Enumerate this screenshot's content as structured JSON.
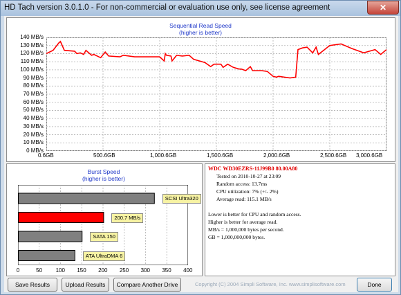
{
  "window": {
    "title": "HD Tach version 3.0.1.0  - For non-commercial or evaluation use only, see license agreement",
    "close_glyph": "✕"
  },
  "seq_chart": {
    "title": "Sequential Read Speed",
    "subtitle": "(higher is better)",
    "y_ticks": [
      "140 MB/s",
      "130 MB/s",
      "120 MB/s",
      "110 MB/s",
      "100 MB/s",
      "90 MB/s",
      "80 MB/s",
      "70 MB/s",
      "60 MB/s",
      "50 MB/s",
      "40 MB/s",
      "30 MB/s",
      "20 MB/s",
      "10 MB/s",
      "0 MB/s"
    ],
    "x_ticks": [
      "0.6GB",
      "500.6GB",
      "1,000.6GB",
      "1,500.6GB",
      "2,000.6GB",
      "2,500.6GB",
      "3,000.6GB"
    ]
  },
  "burst_chart": {
    "title": "Burst Speed",
    "subtitle": "(higher is better)",
    "x_ticks": [
      "0",
      "50",
      "100",
      "150",
      "200",
      "250",
      "300",
      "350",
      "400"
    ],
    "bar_labels": [
      "SCSI Ultra320",
      "200.7 MB/s",
      "SATA 150",
      "ATA UltraDMA 6"
    ]
  },
  "info": {
    "drive": "WDC  WD30EZRS-11J99B0 80.00A80",
    "lines": [
      "Tested on 2010-10-27 at 23:09",
      "Random access: 13.7ms",
      "CPU utilization: 7% (+/- 2%)",
      "Average read: 115.1 MB/s"
    ],
    "notes": [
      "Lower is better for CPU and random access.",
      "Higher is better for average read.",
      "MB/s = 1,000,000 bytes per second.",
      "GB = 1,000,000,000 bytes."
    ]
  },
  "buttons": {
    "save": "Save Results",
    "upload": "Upload Results",
    "compare": "Compare Another Drive",
    "done": "Done"
  },
  "copyright": "Copyright (C) 2004 Simpli Software, Inc.  www.simplisoftware.com",
  "colors": {
    "series": "#ff0000",
    "bar_gray": "#808080",
    "bar_red": "#ff0000",
    "label_bg": "#f7f3a3",
    "title_blue": "#1e37c8"
  },
  "chart_data": [
    {
      "type": "line",
      "title": "Sequential Read Speed",
      "subtitle": "(higher is better)",
      "xlabel": "",
      "ylabel": "",
      "x_unit": "GB",
      "y_unit": "MB/s",
      "xlim": [
        0.6,
        3000.6
      ],
      "ylim": [
        0,
        140
      ],
      "grid": true,
      "series": [
        {
          "x": [
            0.6,
            60,
            110,
            125,
            160,
            250,
            270,
            300,
            330,
            350,
            400,
            420,
            480,
            520,
            550,
            650,
            680,
            780,
            800,
            1000,
            1040,
            1050,
            1060,
            1100,
            1110,
            1150,
            1200,
            1260,
            1300,
            1400,
            1450,
            1480,
            1540,
            1560,
            1600,
            1650,
            1700,
            1720,
            1760,
            1800,
            1820,
            1900,
            1950,
            2000,
            2030,
            2050,
            2100,
            2150,
            2200,
            2220,
            2260,
            2300,
            2350,
            2380,
            2400,
            2500,
            2600,
            2700,
            2800,
            2900,
            2950,
            3000.6
          ],
          "values": [
            120,
            124,
            133,
            135,
            124,
            123,
            120,
            121,
            119,
            124,
            118,
            119,
            115,
            122,
            117,
            116,
            118,
            116,
            116,
            116,
            111,
            120,
            118,
            117,
            111,
            118,
            117,
            118,
            113,
            109,
            104,
            107,
            107,
            103,
            107,
            103,
            101,
            101,
            99,
            104,
            99,
            99,
            98,
            92,
            91,
            92,
            91,
            90,
            91,
            125,
            127,
            128,
            121,
            128,
            119,
            130,
            132,
            126,
            121,
            125,
            119,
            125
          ]
        }
      ]
    },
    {
      "type": "bar",
      "title": "Burst Speed",
      "subtitle": "(higher is better)",
      "orientation": "horizontal",
      "xlim": [
        0,
        400
      ],
      "categories": [
        "SCSI Ultra320",
        "200.7 MB/s",
        "SATA 150",
        "ATA UltraDMA 6"
      ],
      "values": [
        320,
        200.7,
        150,
        133
      ],
      "grid": true
    }
  ]
}
